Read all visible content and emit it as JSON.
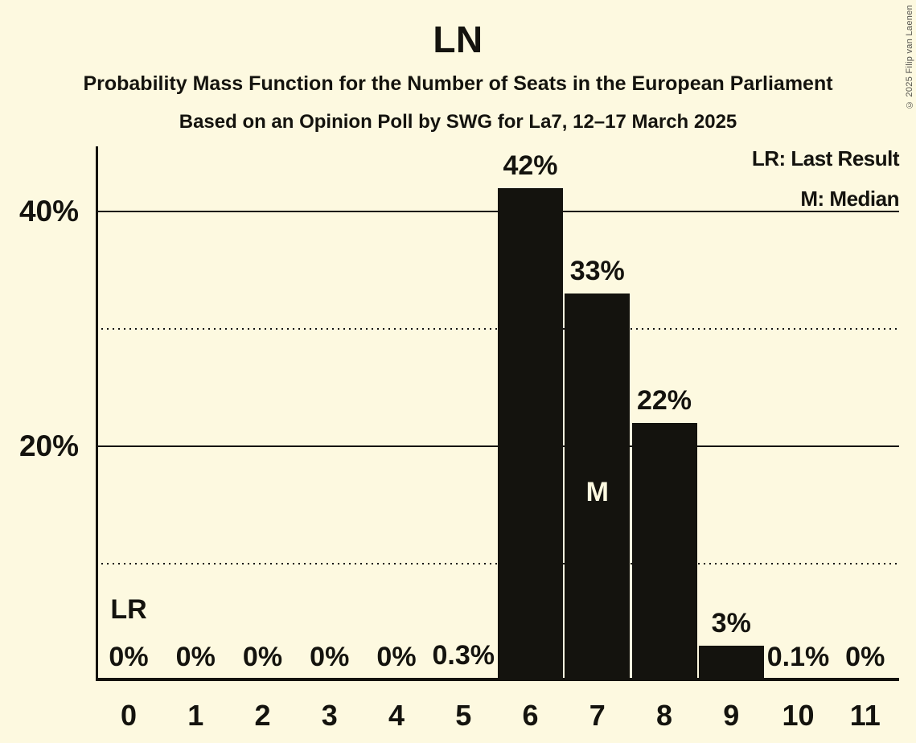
{
  "title": "LN",
  "subtitle": "Probability Mass Function for the Number of Seats in the European Parliament",
  "source_line": "Based on an Opinion Poll by SWG for La7, 12–17 March 2025",
  "legend": {
    "last_result": "LR: Last Result",
    "median": "M: Median"
  },
  "copyright": "© 2025 Filip van Laenen",
  "colors": {
    "background": "#FDF9E0",
    "bar": "#14130E",
    "ink": "#14130E",
    "copyright_text": "#55544E"
  },
  "chart_data": {
    "type": "bar",
    "title": "LN",
    "categories": [
      "0",
      "1",
      "2",
      "3",
      "4",
      "5",
      "6",
      "7",
      "8",
      "9",
      "10",
      "11"
    ],
    "values": [
      0,
      0,
      0,
      0,
      0,
      0.3,
      42,
      33,
      22,
      3,
      0.1,
      0
    ],
    "value_labels": [
      "0%",
      "0%",
      "0%",
      "0%",
      "0%",
      "0.3%",
      "42%",
      "33%",
      "22%",
      "3%",
      "0.1%",
      "0%"
    ],
    "yticks": [
      {
        "value": 20,
        "label": "20%"
      },
      {
        "value": 40,
        "label": "40%"
      }
    ],
    "gridlines": {
      "solid": [
        20,
        40
      ],
      "dotted": [
        10,
        30
      ]
    },
    "ylim": [
      0,
      45.8
    ],
    "grid": true,
    "legend_position": "top-right",
    "annotations": [
      {
        "text": "LR",
        "meaning": "Last Result",
        "seat": "0",
        "style": "outside"
      },
      {
        "text": "M",
        "meaning": "Median",
        "seat": "7",
        "style": "inside-bar"
      }
    ]
  }
}
